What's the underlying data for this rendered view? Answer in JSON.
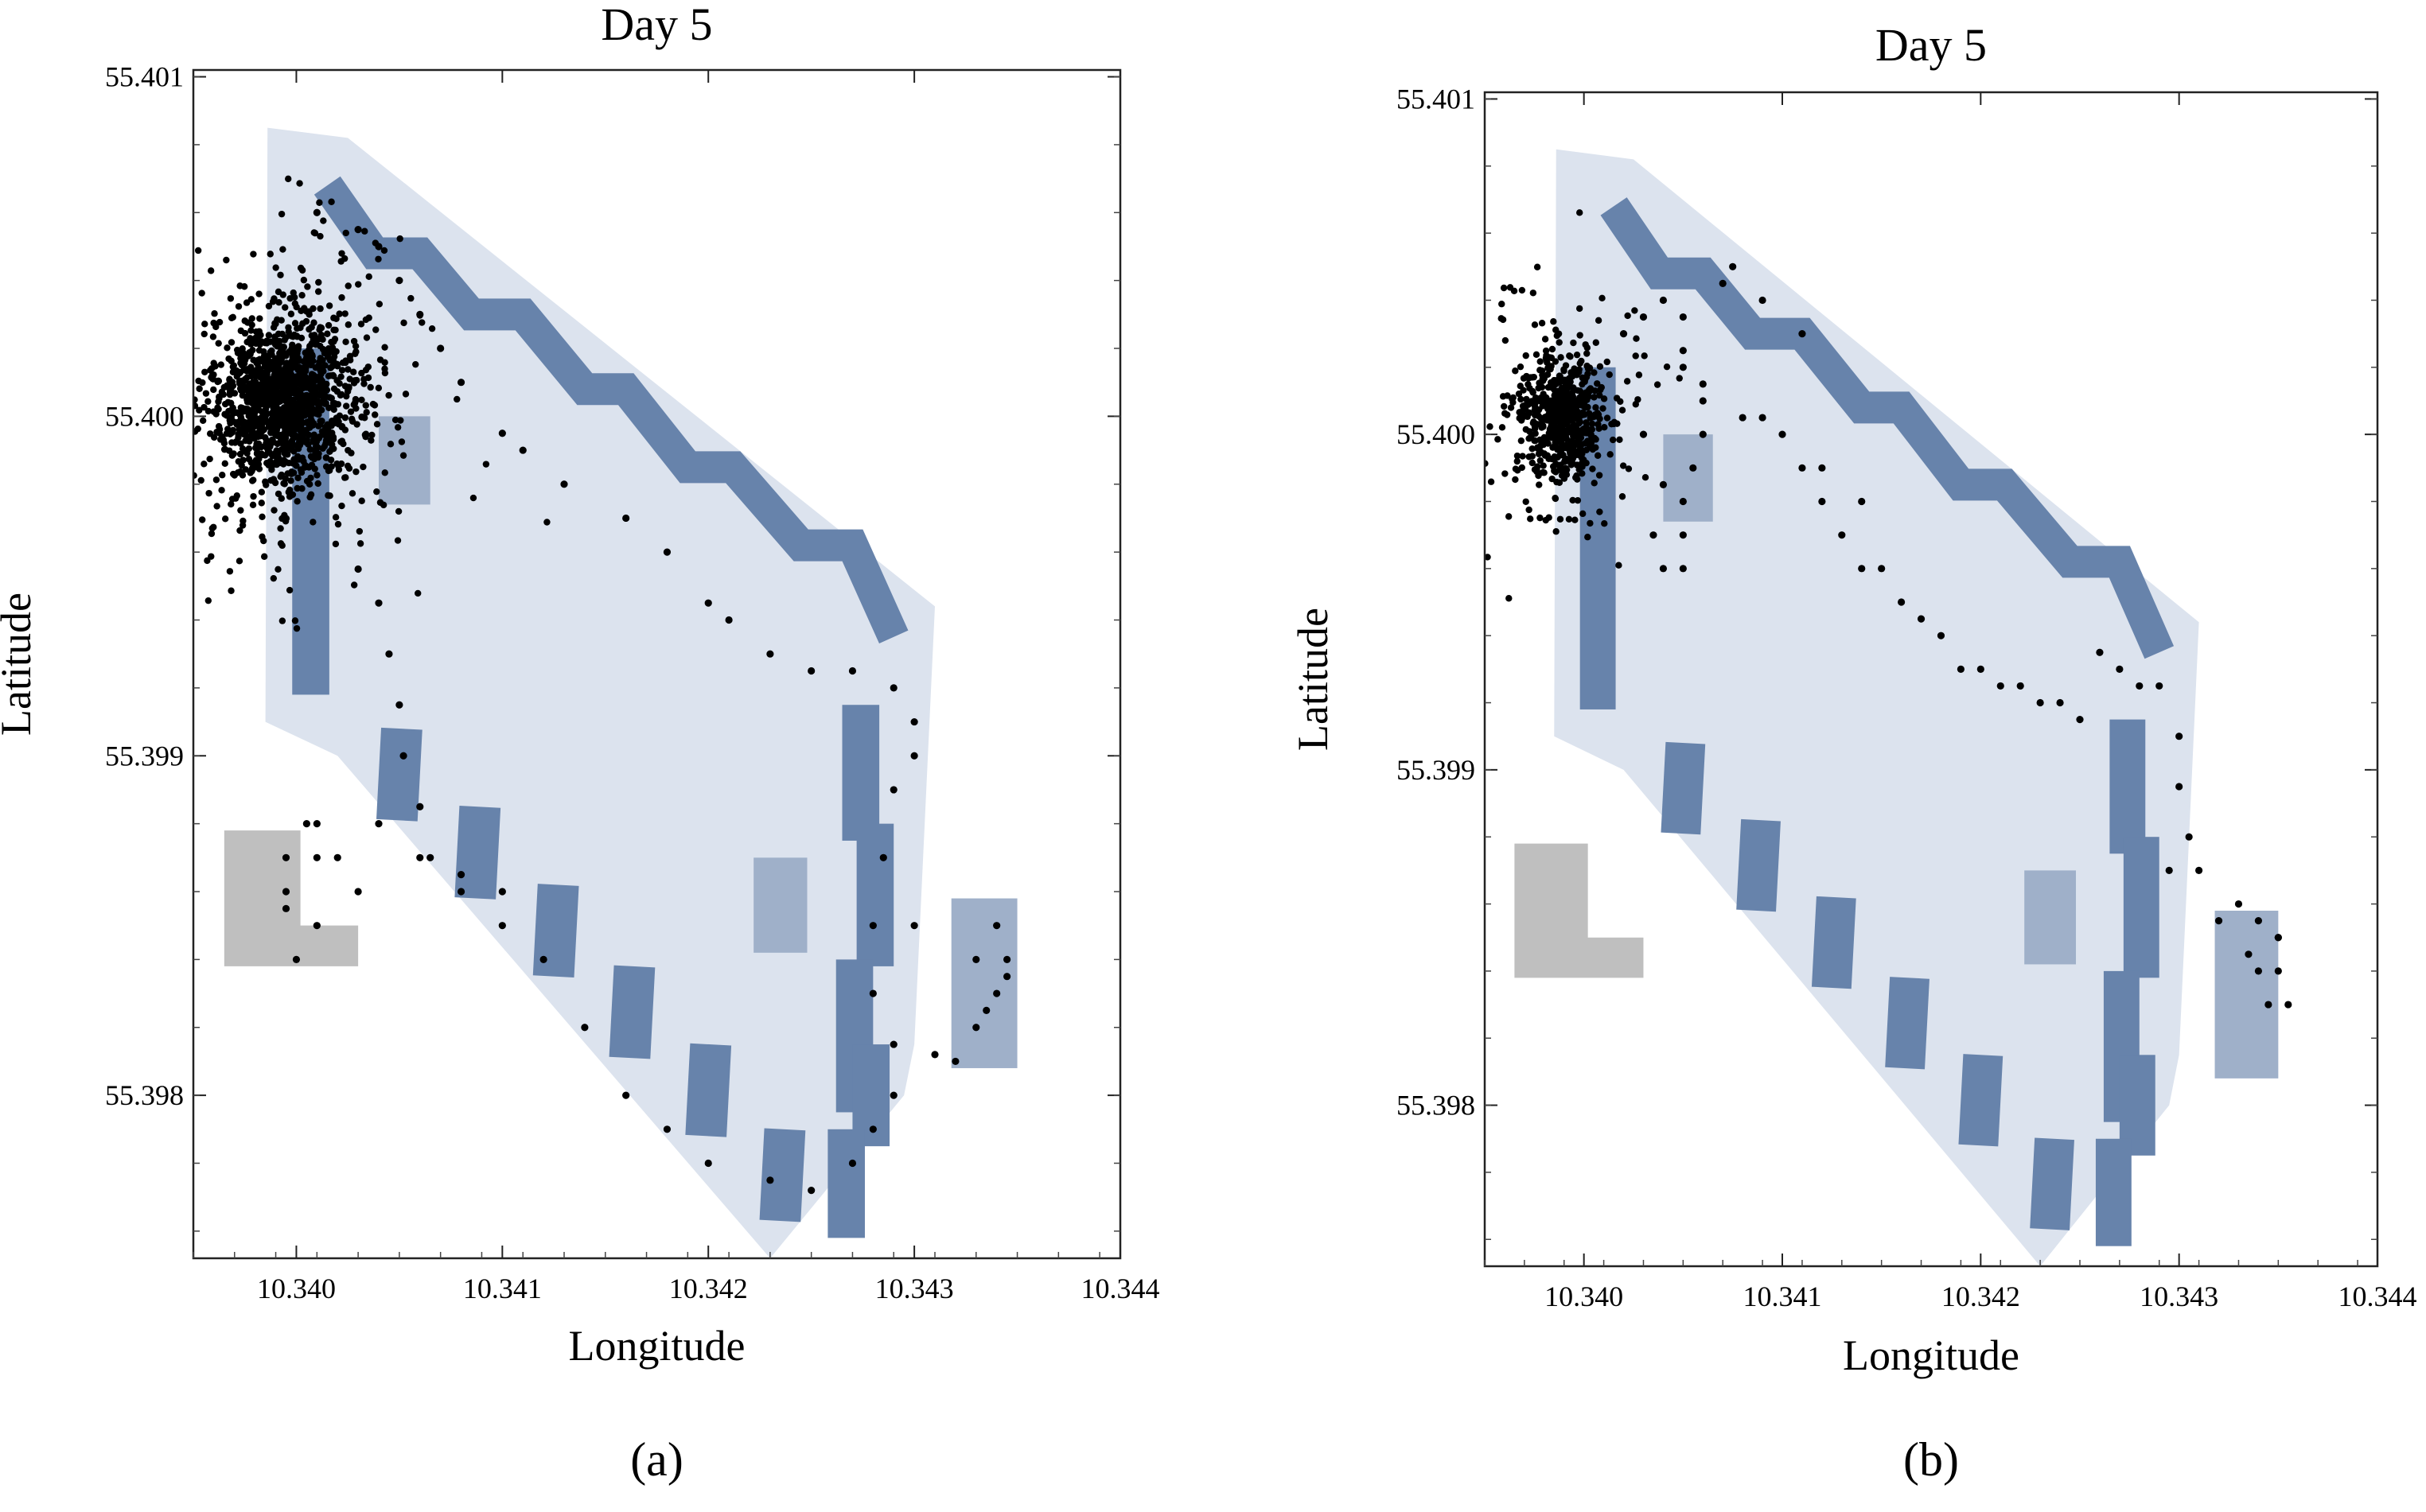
{
  "chart_data": [
    {
      "type": "scatter",
      "panel_label": "(a)",
      "title": "Day 5",
      "xlabel": "Longitude",
      "ylabel": "Latitude",
      "xlim": [
        10.3395,
        10.344
      ],
      "ylim": [
        55.39752,
        55.40102
      ],
      "x_ticks": [
        "10.340",
        "10.341",
        "10.342",
        "10.343",
        "10.344"
      ],
      "y_ticks": [
        "55.398",
        "55.399",
        "55.400",
        "55.401"
      ],
      "grid": false,
      "colors": {
        "area": "#dce3ee",
        "pen": "#6783ab",
        "pen_light": "#9fb0c9",
        "gray": "#bfbfbf",
        "points": "#000000"
      },
      "cluster": {
        "center": [
          10.33995,
          55.40005
        ],
        "sd": [
          0.00016,
          0.00012
        ],
        "count": 1500
      },
      "series": [
        {
          "values": [
            [
              10.3403,
              55.39955
            ],
            [
              10.3404,
              55.39945
            ],
            [
              10.34045,
              55.3993
            ],
            [
              10.3405,
              55.39915
            ],
            [
              10.34052,
              55.399
            ],
            [
              10.3406,
              55.39885
            ],
            [
              10.34065,
              55.3987
            ],
            [
              10.3408,
              55.39865
            ],
            [
              10.341,
              55.3986
            ],
            [
              10.3412,
              55.3984
            ],
            [
              10.3414,
              55.3982
            ],
            [
              10.3416,
              55.398
            ],
            [
              10.3418,
              55.3979
            ],
            [
              10.342,
              55.3978
            ],
            [
              10.3423,
              55.39775
            ],
            [
              10.3425,
              55.39772
            ],
            [
              10.3427,
              55.3978
            ],
            [
              10.3428,
              55.3979
            ],
            [
              10.3429,
              55.398
            ],
            [
              10.3429,
              55.39815
            ],
            [
              10.3428,
              55.3983
            ],
            [
              10.3428,
              55.3985
            ],
            [
              10.34285,
              55.3987
            ],
            [
              10.3429,
              55.3989
            ],
            [
              10.343,
              55.399
            ],
            [
              10.343,
              55.3991
            ],
            [
              10.3429,
              55.3992
            ],
            [
              10.3427,
              55.39925
            ],
            [
              10.3425,
              55.39925
            ],
            [
              10.3423,
              55.3993
            ],
            [
              10.3421,
              55.3994
            ],
            [
              10.342,
              55.39945
            ],
            [
              10.3418,
              55.3996
            ],
            [
              10.3416,
              55.3997
            ],
            [
              10.3413,
              55.3998
            ],
            [
              10.3411,
              55.3999
            ],
            [
              10.341,
              55.39995
            ],
            [
              10.3408,
              55.4001
            ],
            [
              10.3407,
              55.4002
            ],
            [
              10.3406,
              55.4003
            ],
            [
              10.3405,
              55.4004
            ],
            [
              10.3404,
              55.4005
            ],
            [
              10.3403,
              55.40055
            ],
            [
              10.3401,
              55.4006
            ],
            [
              10.3433,
              55.3984
            ],
            [
              10.3434,
              55.3985
            ],
            [
              10.34345,
              55.39835
            ],
            [
              10.3434,
              55.3983
            ],
            [
              10.34335,
              55.39825
            ],
            [
              10.3433,
              55.3982
            ],
            [
              10.3432,
              55.3981
            ],
            [
              10.3431,
              55.39812
            ],
            [
              10.34345,
              55.3984
            ],
            [
              10.343,
              55.3985
            ],
            [
              10.3401,
              55.3988
            ],
            [
              10.3401,
              55.3987
            ],
            [
              10.33995,
              55.3986
            ],
            [
              10.33995,
              55.39855
            ],
            [
              10.3401,
              55.3985
            ],
            [
              10.34,
              55.3984
            ],
            [
              10.34005,
              55.3988
            ],
            [
              10.33995,
              55.3987
            ],
            [
              10.3402,
              55.3987
            ],
            [
              10.3403,
              55.3986
            ],
            [
              10.3404,
              55.3988
            ],
            [
              10.3406,
              55.3987
            ],
            [
              10.3408,
              55.3986
            ],
            [
              10.341,
              55.3985
            ]
          ]
        }
      ]
    },
    {
      "type": "scatter",
      "panel_label": "(b)",
      "title": "Day 5",
      "xlabel": "Longitude",
      "ylabel": "Latitude",
      "xlim": [
        10.3395,
        10.344
      ],
      "ylim": [
        55.39752,
        55.40102
      ],
      "x_ticks": [
        "10.340",
        "10.341",
        "10.342",
        "10.343",
        "10.344"
      ],
      "y_ticks": [
        "55.398",
        "55.399",
        "55.400",
        "55.401"
      ],
      "grid": false,
      "colors": {
        "area": "#dce3ee",
        "pen": "#6783ab",
        "pen_light": "#9fb0c9",
        "gray": "#bfbfbf",
        "points": "#000000"
      },
      "cluster": {
        "center": [
          10.3399,
          55.40005
        ],
        "sd": [
          0.0001,
          9e-05
        ],
        "count": 650
      },
      "series": [
        {
          "values": [
            [
              10.3402,
              55.4003
            ],
            [
              10.3403,
              55.40035
            ],
            [
              10.3404,
              55.4004
            ],
            [
              10.3405,
              55.40035
            ],
            [
              10.3405,
              55.4002
            ],
            [
              10.3406,
              55.4001
            ],
            [
              10.3406,
              55.4
            ],
            [
              10.34055,
              55.3999
            ],
            [
              10.3405,
              55.3998
            ],
            [
              10.3405,
              55.3997
            ],
            [
              10.3405,
              55.3996
            ],
            [
              10.3408,
              55.40005
            ],
            [
              10.3409,
              55.40005
            ],
            [
              10.341,
              55.4
            ],
            [
              10.3411,
              55.3999
            ],
            [
              10.3412,
              55.3998
            ],
            [
              10.3413,
              55.3997
            ],
            [
              10.3414,
              55.3996
            ],
            [
              10.3416,
              55.3995
            ],
            [
              10.3417,
              55.39945
            ],
            [
              10.3418,
              55.3994
            ],
            [
              10.342,
              55.3993
            ],
            [
              10.3422,
              55.39925
            ],
            [
              10.3424,
              55.3992
            ],
            [
              10.3426,
              55.39935
            ],
            [
              10.3427,
              55.3993
            ],
            [
              10.3428,
              55.39925
            ],
            [
              10.3429,
              55.39925
            ],
            [
              10.343,
              55.3991
            ],
            [
              10.343,
              55.39895
            ],
            [
              10.34305,
              55.3988
            ],
            [
              10.3431,
              55.3987
            ],
            [
              10.3433,
              55.3986
            ],
            [
              10.3434,
              55.39855
            ],
            [
              10.3435,
              55.3985
            ],
            [
              10.3435,
              55.3984
            ],
            [
              10.34345,
              55.3983
            ],
            [
              10.34355,
              55.3983
            ],
            [
              10.3403,
              55.4
            ],
            [
              10.3404,
              55.39985
            ],
            [
              10.34035,
              55.3997
            ],
            [
              10.3404,
              55.3996
            ],
            [
              10.3405,
              55.40025
            ],
            [
              10.3406,
              55.40015
            ],
            [
              10.3407,
              55.40045
            ],
            [
              10.34075,
              55.4005
            ],
            [
              10.3409,
              55.4004
            ],
            [
              10.3411,
              55.4003
            ],
            [
              10.3412,
              55.3999
            ],
            [
              10.3414,
              55.3998
            ],
            [
              10.3415,
              55.3996
            ],
            [
              10.3419,
              55.3993
            ],
            [
              10.3421,
              55.39925
            ],
            [
              10.3423,
              55.3992
            ],
            [
              10.3425,
              55.39915
            ],
            [
              10.34295,
              55.3987
            ],
            [
              10.3432,
              55.39855
            ],
            [
              10.34335,
              55.39845
            ],
            [
              10.3434,
              55.3984
            ],
            [
              10.3435,
              55.3985
            ]
          ]
        }
      ]
    }
  ]
}
